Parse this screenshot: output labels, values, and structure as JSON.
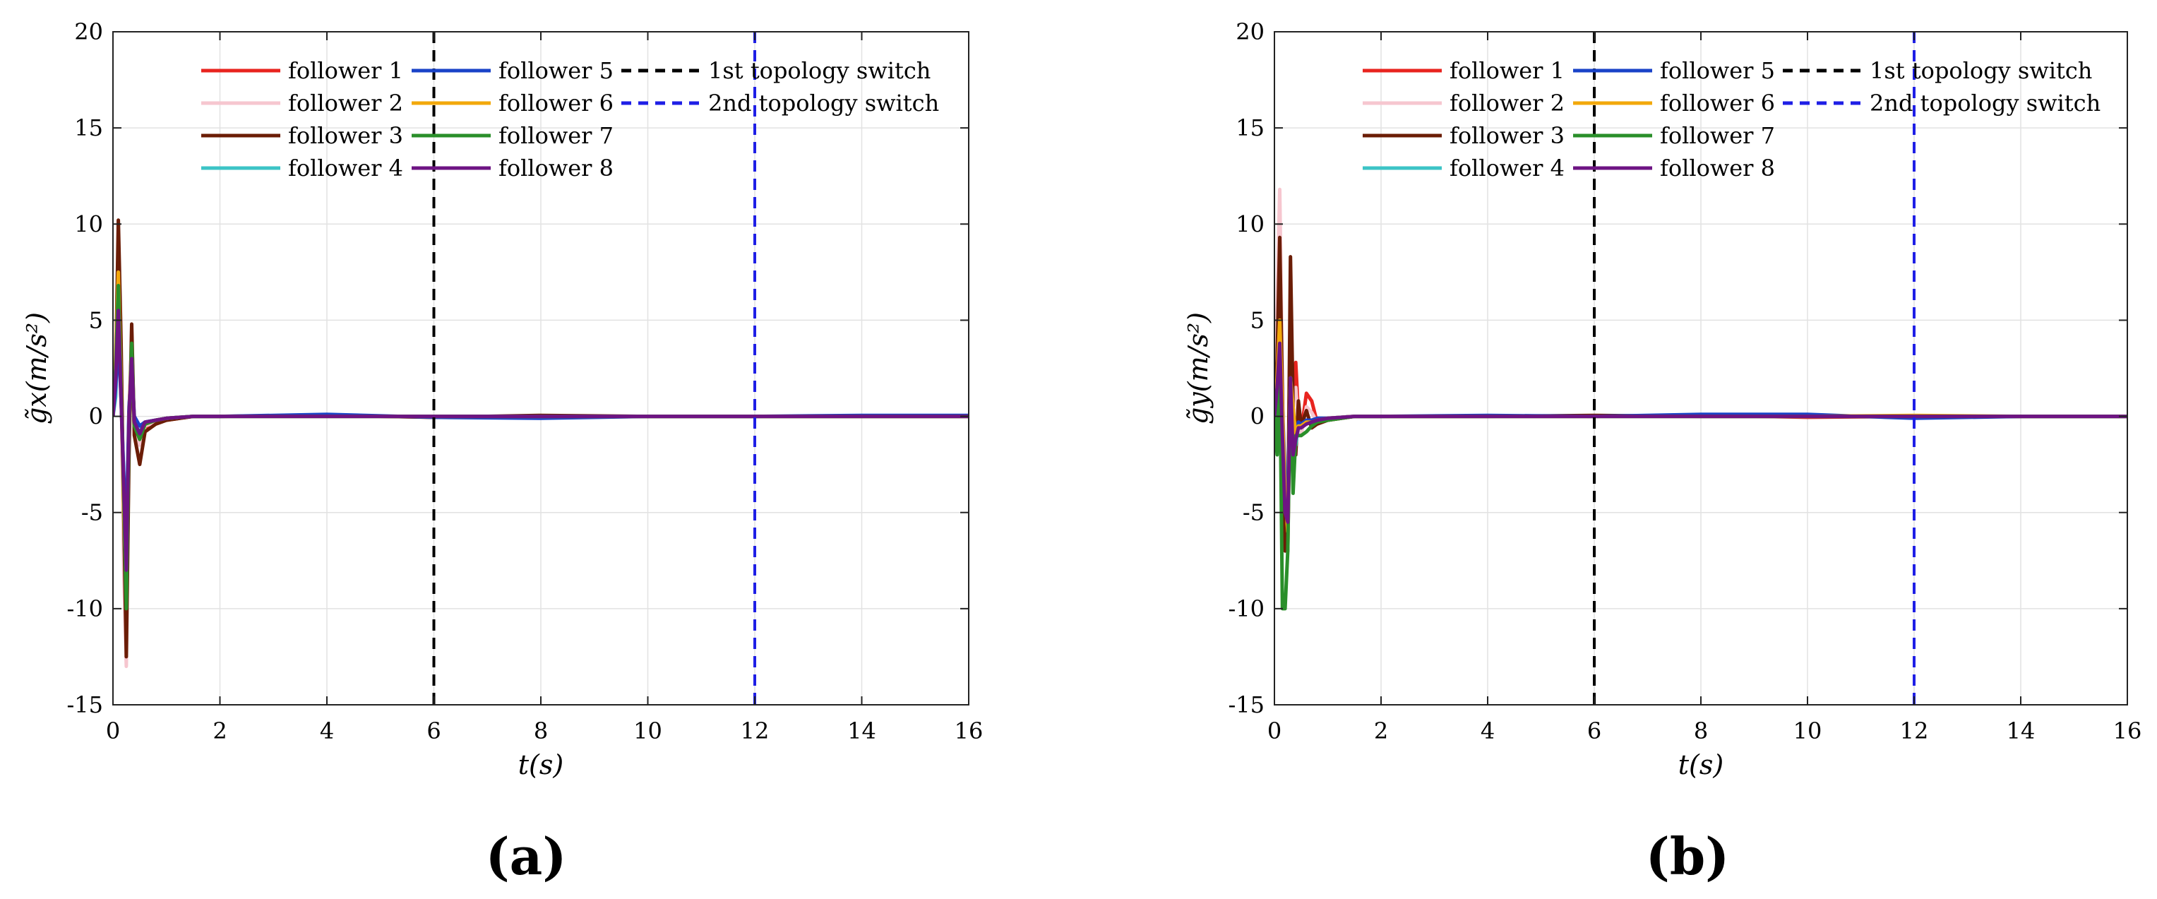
{
  "chart_data": [
    {
      "type": "line",
      "panel_label": "(a)",
      "xlabel": "t(s)",
      "ylabel": "g̃x(m/s²)",
      "xlim": [
        0,
        16
      ],
      "ylim": [
        -15,
        20
      ],
      "xticks": [
        0,
        2,
        4,
        6,
        8,
        10,
        12,
        14,
        16
      ],
      "yticks": [
        -15,
        -10,
        -5,
        0,
        5,
        10,
        15,
        20
      ],
      "grid": true,
      "legend": "top, 3 columns",
      "series": [
        {
          "name": "follower 1",
          "color": "#e8241f",
          "x": [
            0,
            0.05,
            0.1,
            0.15,
            0.2,
            0.25,
            0.3,
            0.35,
            0.4,
            0.5,
            0.6,
            0.8,
            1.0,
            1.5,
            2,
            4,
            6,
            8,
            10,
            12,
            14,
            16
          ],
          "y": [
            0,
            3,
            8,
            2,
            -6,
            -11,
            0,
            4,
            -1,
            -1,
            -0.6,
            -0.3,
            -0.2,
            0,
            0,
            0.05,
            -0.05,
            0,
            0,
            0,
            0,
            0
          ]
        },
        {
          "name": "follower 2",
          "color": "#f6c6cf",
          "x": [
            0,
            0.05,
            0.1,
            0.15,
            0.2,
            0.25,
            0.3,
            0.35,
            0.4,
            0.5,
            0.6,
            0.8,
            1.0,
            1.5,
            2,
            4,
            6,
            8,
            10,
            12,
            14,
            16
          ],
          "y": [
            0,
            4,
            9,
            3,
            -8,
            -13,
            -1,
            4.5,
            -0.5,
            -1.5,
            -0.5,
            -0.3,
            -0.1,
            0,
            0,
            0,
            0,
            0,
            0,
            0,
            0,
            0
          ]
        },
        {
          "name": "follower 3",
          "color": "#6b1d06",
          "x": [
            0,
            0.05,
            0.1,
            0.15,
            0.2,
            0.25,
            0.3,
            0.35,
            0.4,
            0.5,
            0.6,
            0.8,
            1.0,
            1.5,
            2,
            4,
            6,
            8,
            10,
            12,
            14,
            16
          ],
          "y": [
            0,
            2,
            10.2,
            4,
            -5,
            -12.5,
            -2,
            4.8,
            -1,
            -2.5,
            -0.8,
            -0.4,
            -0.2,
            0,
            0,
            0.05,
            -0.05,
            0.05,
            0,
            0,
            0,
            0
          ]
        },
        {
          "name": "follower 4",
          "color": "#3cc4c6",
          "x": [
            0,
            0.05,
            0.1,
            0.15,
            0.2,
            0.25,
            0.3,
            0.35,
            0.4,
            0.5,
            0.6,
            0.8,
            1.0,
            1.5,
            2,
            4,
            6,
            8,
            10,
            12,
            14,
            16
          ],
          "y": [
            0,
            1,
            5,
            1,
            -3,
            -7,
            0,
            3,
            -0.5,
            -0.8,
            -0.3,
            -0.2,
            -0.1,
            0,
            0,
            0,
            0,
            0,
            0,
            0,
            0,
            0
          ]
        },
        {
          "name": "follower 5",
          "color": "#1a43c8",
          "x": [
            0,
            0.05,
            0.1,
            0.15,
            0.2,
            0.25,
            0.3,
            0.35,
            0.4,
            0.5,
            0.6,
            0.8,
            1.0,
            1.5,
            2,
            4,
            6,
            8,
            10,
            12,
            14,
            16
          ],
          "y": [
            0,
            1.5,
            4,
            1,
            -3,
            -6,
            0.5,
            2.5,
            0,
            -0.5,
            -0.3,
            -0.2,
            -0.1,
            0,
            0,
            0.1,
            -0.05,
            -0.1,
            0,
            0,
            0.05,
            0.05
          ]
        },
        {
          "name": "follower 6",
          "color": "#f2a80b",
          "x": [
            0,
            0.05,
            0.1,
            0.15,
            0.2,
            0.25,
            0.3,
            0.35,
            0.4,
            0.5,
            0.6,
            0.8,
            1.0,
            1.5,
            2,
            4,
            6,
            8,
            10,
            12,
            14,
            16
          ],
          "y": [
            0,
            3,
            7.5,
            2,
            -5,
            -9,
            0,
            3.5,
            -0.5,
            -1,
            -0.4,
            -0.2,
            -0.1,
            0,
            0,
            0,
            0,
            0,
            0,
            0,
            0,
            0
          ]
        },
        {
          "name": "follower 7",
          "color": "#2a8f2a",
          "x": [
            0,
            0.05,
            0.1,
            0.15,
            0.2,
            0.25,
            0.3,
            0.35,
            0.4,
            0.5,
            0.6,
            0.8,
            1.0,
            1.5,
            2,
            4,
            6,
            8,
            10,
            12,
            14,
            16
          ],
          "y": [
            0,
            2.5,
            6.8,
            1.5,
            -4,
            -10,
            -0.5,
            3.8,
            -0.5,
            -1.2,
            -0.4,
            -0.2,
            -0.1,
            0,
            0,
            0,
            0,
            0,
            0,
            0,
            0,
            0
          ]
        },
        {
          "name": "follower 8",
          "color": "#6e1483",
          "x": [
            0,
            0.05,
            0.1,
            0.15,
            0.2,
            0.25,
            0.3,
            0.35,
            0.4,
            0.5,
            0.6,
            0.8,
            1.0,
            1.5,
            2,
            4,
            6,
            8,
            10,
            12,
            14,
            16
          ],
          "y": [
            0,
            2,
            5.5,
            1,
            -3.5,
            -8,
            0,
            3,
            -0.3,
            -0.9,
            -0.3,
            -0.2,
            -0.1,
            0,
            0,
            0,
            0,
            0,
            0,
            0,
            0,
            0
          ]
        }
      ],
      "vlines": [
        {
          "name": "1st topology switch",
          "x": 6,
          "color": "#000000"
        },
        {
          "name": "2nd topology switch",
          "x": 12,
          "color": "#1f1fe6"
        }
      ]
    },
    {
      "type": "line",
      "panel_label": "(b)",
      "xlabel": "t(s)",
      "ylabel": "g̃y(m/s²)",
      "xlim": [
        0,
        16
      ],
      "ylim": [
        -15,
        20
      ],
      "xticks": [
        0,
        2,
        4,
        6,
        8,
        10,
        12,
        14,
        16
      ],
      "yticks": [
        -15,
        -10,
        -5,
        0,
        5,
        10,
        15,
        20
      ],
      "grid": true,
      "legend": "top, 3 columns",
      "series": [
        {
          "name": "follower 1",
          "color": "#e8241f",
          "x": [
            0,
            0.05,
            0.1,
            0.15,
            0.2,
            0.25,
            0.3,
            0.35,
            0.4,
            0.45,
            0.5,
            0.6,
            0.7,
            0.8,
            1.0,
            1.5,
            2,
            4,
            6,
            8,
            10,
            12,
            14,
            16
          ],
          "y": [
            0,
            4,
            8,
            1,
            -6,
            -7,
            3,
            1,
            2.8,
            0,
            -0.8,
            1.2,
            0.8,
            -0.3,
            -0.2,
            0,
            0,
            0,
            0,
            0.05,
            -0.05,
            0,
            0,
            0
          ]
        },
        {
          "name": "follower 2",
          "color": "#f6c6cf",
          "x": [
            0,
            0.05,
            0.1,
            0.15,
            0.2,
            0.25,
            0.3,
            0.35,
            0.4,
            0.45,
            0.5,
            0.6,
            0.7,
            0.8,
            1.0,
            1.5,
            2,
            4,
            6,
            8,
            10,
            12,
            14,
            16
          ],
          "y": [
            0,
            6,
            11.8,
            2,
            -5,
            -6,
            4,
            1,
            1.5,
            -0.5,
            -1,
            0.5,
            0.2,
            -0.3,
            -0.1,
            0,
            0,
            0,
            0,
            0,
            0,
            0,
            0,
            0
          ]
        },
        {
          "name": "follower 3",
          "color": "#6b1d06",
          "x": [
            0,
            0.05,
            0.1,
            0.15,
            0.2,
            0.25,
            0.3,
            0.35,
            0.4,
            0.45,
            0.5,
            0.6,
            0.7,
            0.8,
            1.0,
            1.5,
            2,
            4,
            6,
            8,
            10,
            12,
            14,
            16
          ],
          "y": [
            0,
            3,
            9.3,
            1,
            -7,
            -6,
            8.3,
            0.5,
            -2,
            0.8,
            -0.5,
            0.3,
            -0.6,
            -0.4,
            -0.2,
            0,
            0,
            0,
            0.05,
            0,
            0,
            0,
            0,
            0
          ]
        },
        {
          "name": "follower 4",
          "color": "#3cc4c6",
          "x": [
            0,
            0.05,
            0.1,
            0.15,
            0.2,
            0.25,
            0.3,
            0.35,
            0.4,
            0.45,
            0.5,
            0.6,
            0.7,
            0.8,
            1.0,
            1.5,
            2,
            4,
            6,
            8,
            10,
            12,
            14,
            16
          ],
          "y": [
            0,
            1,
            4,
            0,
            -4,
            -5,
            2,
            0,
            -1.5,
            -0.5,
            -0.5,
            -0.2,
            -0.3,
            -0.2,
            -0.1,
            0,
            0,
            0,
            0,
            0,
            0,
            0,
            0,
            0
          ]
        },
        {
          "name": "follower 5",
          "color": "#1a43c8",
          "x": [
            0,
            0.05,
            0.1,
            0.15,
            0.2,
            0.25,
            0.3,
            0.35,
            0.4,
            0.45,
            0.5,
            0.6,
            0.7,
            0.8,
            1.0,
            1.5,
            2,
            4,
            6,
            8,
            10,
            12,
            14,
            16
          ],
          "y": [
            0,
            1.5,
            3.5,
            0.5,
            -3,
            -5,
            1.5,
            0,
            -1,
            -0.3,
            -0.4,
            -0.2,
            -0.2,
            -0.1,
            -0.1,
            0,
            0,
            0.05,
            0,
            0.1,
            0.1,
            -0.1,
            0,
            0
          ]
        },
        {
          "name": "follower 6",
          "color": "#f2a80b",
          "x": [
            0,
            0.05,
            0.1,
            0.15,
            0.2,
            0.25,
            0.3,
            0.35,
            0.4,
            0.45,
            0.5,
            0.6,
            0.7,
            0.8,
            1.0,
            1.5,
            2,
            4,
            6,
            8,
            10,
            12,
            14,
            16
          ],
          "y": [
            0,
            2,
            5,
            0.5,
            -4,
            -6,
            2,
            0.5,
            -1,
            -0.5,
            -0.5,
            -0.3,
            -0.3,
            -0.2,
            -0.1,
            0,
            0,
            0,
            0,
            0,
            0,
            0.05,
            0,
            0
          ]
        },
        {
          "name": "follower 7",
          "color": "#2a8f2a",
          "x": [
            0,
            0.05,
            0.1,
            0.15,
            0.2,
            0.25,
            0.3,
            0.35,
            0.4,
            0.45,
            0.5,
            0.6,
            0.7,
            0.8,
            1.0,
            1.5,
            2,
            4,
            6,
            8,
            10,
            12,
            14,
            16
          ],
          "y": [
            0,
            -2,
            3,
            -10,
            -10,
            -7,
            2,
            -4,
            -1,
            -1,
            -1,
            -0.8,
            -0.5,
            -0.3,
            -0.2,
            0,
            0,
            0,
            0,
            0,
            0,
            0,
            0,
            0
          ]
        },
        {
          "name": "follower 8",
          "color": "#6e1483",
          "x": [
            0,
            0.05,
            0.1,
            0.15,
            0.2,
            0.25,
            0.3,
            0.35,
            0.4,
            0.45,
            0.5,
            0.6,
            0.7,
            0.8,
            1.0,
            1.5,
            2,
            4,
            6,
            8,
            10,
            12,
            14,
            16
          ],
          "y": [
            0,
            1.5,
            3.8,
            -1,
            -5,
            -5.5,
            2,
            -2,
            -1.2,
            -0.6,
            -0.6,
            -0.4,
            -0.3,
            -0.2,
            -0.1,
            0,
            0,
            0,
            0,
            0,
            0,
            0,
            0,
            0
          ]
        }
      ],
      "vlines": [
        {
          "name": "1st topology switch",
          "x": 6,
          "color": "#000000"
        },
        {
          "name": "2nd topology switch",
          "x": 12,
          "color": "#1f1fe6"
        }
      ]
    }
  ]
}
